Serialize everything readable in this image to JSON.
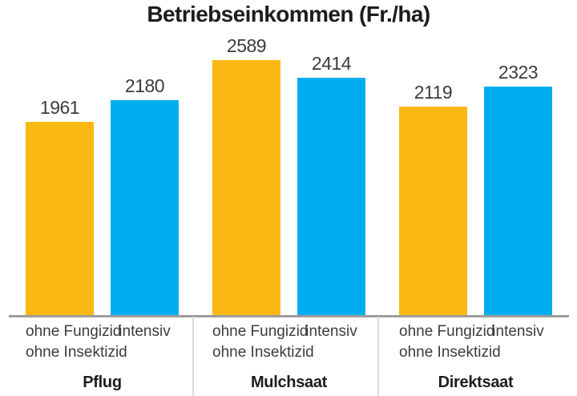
{
  "title": "Betriebseinkommen (Fr./ha)",
  "colors": {
    "orange_series": "#FBB813",
    "blue_series": "#00AEEF",
    "axis_line": "#9D9D9C",
    "divider": "#DBDBDB",
    "text_dark": "#1D1D1B",
    "text_value": "#3C3C3B"
  },
  "chart_data": {
    "type": "bar",
    "title": "Betriebseinkommen (Fr./ha)",
    "categories": [
      "Pflug",
      "Mulchsaat",
      "Direktsaat"
    ],
    "series": [
      {
        "name": "ohne Fungizid ohne Insektizid",
        "color": "#FBB813",
        "values": [
          1961,
          2589,
          2119
        ]
      },
      {
        "name": "intensiv",
        "color": "#00AEEF",
        "values": [
          2180,
          2414,
          2323
        ]
      }
    ],
    "ylabel": "Fr./ha",
    "ylim": [
      0,
      2700
    ],
    "grid": false,
    "legend_position": "per-group-below-bars",
    "bar_label_line1": "ohne Fungizid",
    "bar_label_line2": "ohne Insektizid",
    "bar_label_right": "intensiv"
  }
}
